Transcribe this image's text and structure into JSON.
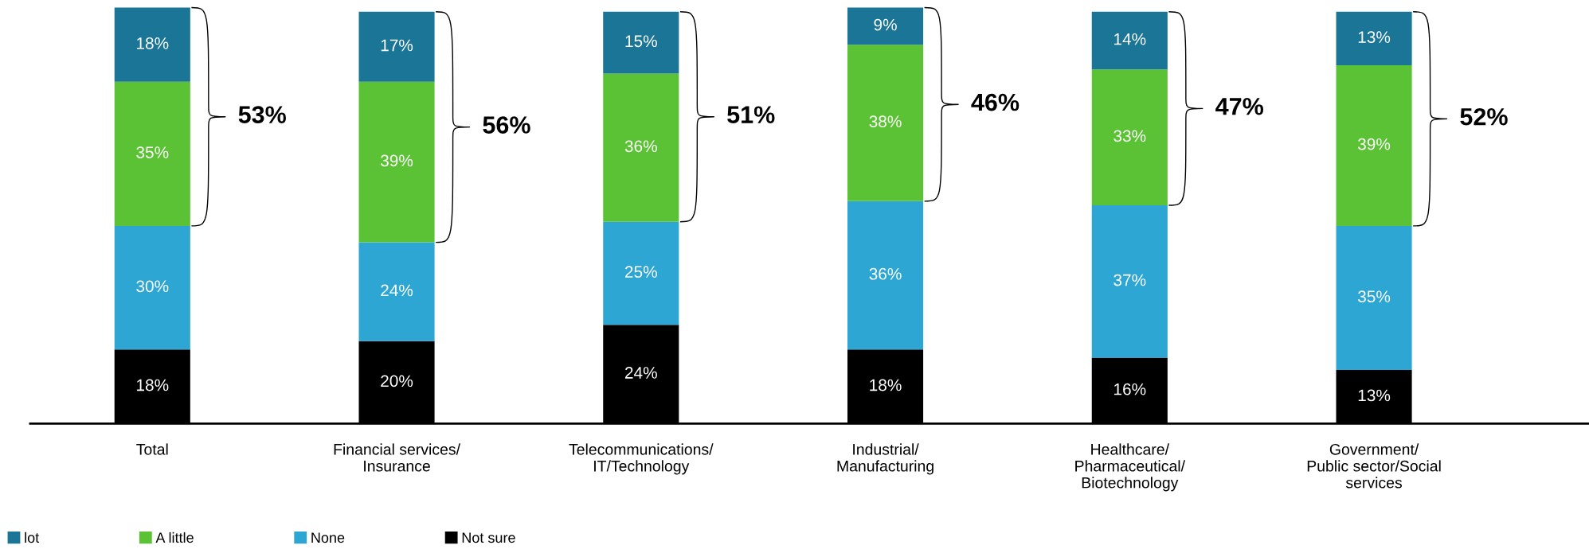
{
  "chart_data": {
    "type": "bar",
    "stacked": true,
    "legend": "bottom left",
    "grid": false,
    "categories": [
      "Total",
      "Financial services/\nInsurance",
      "Telecommunications/\nIT/Technology",
      "Industrial/\nManufacturing",
      "Healthcare/\nPharmaceutical/\nBiotechnology",
      "Government/\nPublic sector/Social\nservices"
    ],
    "series": [
      {
        "name": "Not sure",
        "color": "#000000",
        "values": [
          18,
          20,
          24,
          18,
          16,
          13
        ],
        "value_labels": [
          "18%",
          "20%",
          "24%",
          "18%",
          "16%",
          "13%"
        ]
      },
      {
        "name": "None",
        "color": "#2ea6d3",
        "values": [
          30,
          24,
          25,
          36,
          37,
          35
        ],
        "value_labels": [
          "30%",
          "24%",
          "25%",
          "36%",
          "37%",
          "35%"
        ]
      },
      {
        "name": "A little",
        "color": "#5cc235",
        "values": [
          35,
          39,
          36,
          38,
          33,
          39
        ],
        "value_labels": [
          "35%",
          "39%",
          "36%",
          "38%",
          "33%",
          "39%"
        ]
      },
      {
        "name": "lot",
        "color": "#1a7596",
        "values": [
          18,
          17,
          15,
          9,
          14,
          13
        ],
        "value_labels": [
          "18%",
          "17%",
          "15%",
          "9%",
          "14%",
          "13%"
        ]
      }
    ],
    "annotations": [
      "53%",
      "56%",
      "51%",
      "46%",
      "47%",
      "52%"
    ]
  }
}
